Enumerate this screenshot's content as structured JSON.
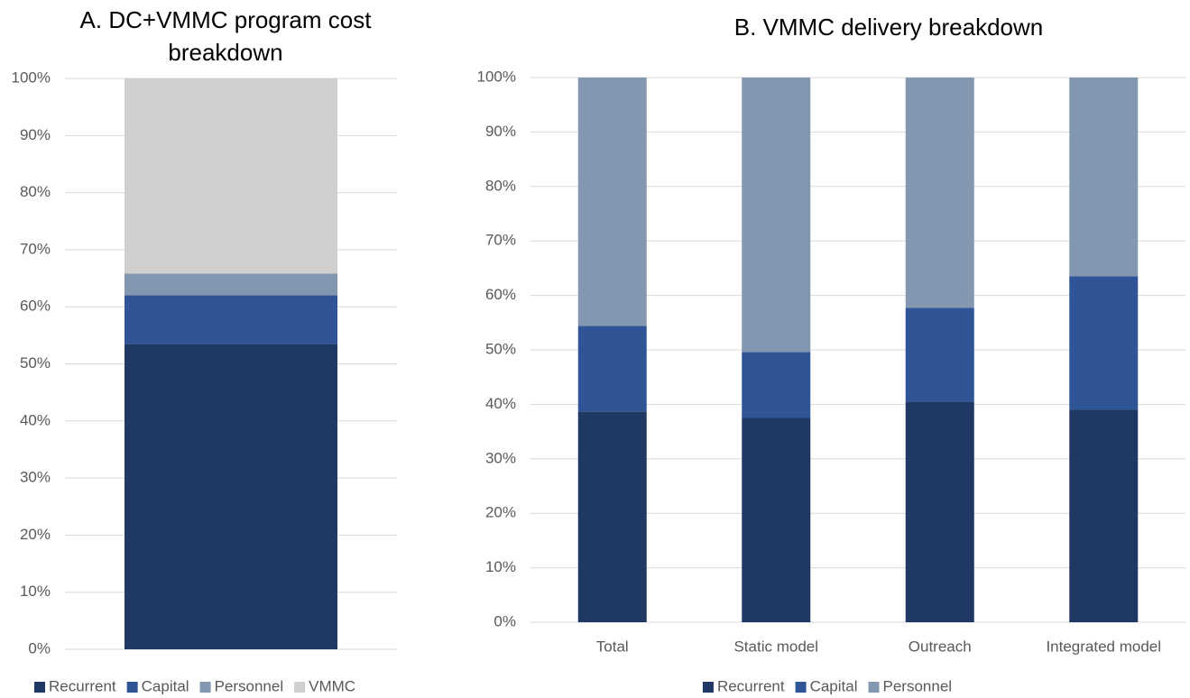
{
  "chart_data": [
    {
      "type": "bar",
      "stacked": true,
      "title": "A. DC+VMMC program cost breakdown",
      "categories": [
        null
      ],
      "series": [
        {
          "name": "Recurrent",
          "color": "#203864",
          "values": [
            53.5
          ]
        },
        {
          "name": "Capital",
          "color": "#2f5597",
          "values": [
            8.5
          ]
        },
        {
          "name": "Personnel",
          "color": "#8497b0",
          "values": [
            3.8
          ]
        },
        {
          "name": "VMMC",
          "color": "#d0cece",
          "values": [
            34.2
          ]
        }
      ],
      "ylim": [
        0,
        100
      ],
      "yticks": [
        {
          "value": 0,
          "label": "0%"
        },
        {
          "value": 10,
          "label": "10%"
        },
        {
          "value": 20,
          "label": "20%"
        },
        {
          "value": 30,
          "label": "30%"
        },
        {
          "value": 40,
          "label": "40%"
        },
        {
          "value": 50,
          "label": "50%"
        },
        {
          "value": 60,
          "label": "60%"
        },
        {
          "value": 70,
          "label": "70%"
        },
        {
          "value": 80,
          "label": "80%"
        },
        {
          "value": 90,
          "label": "90%"
        },
        {
          "value": 100,
          "label": "100%"
        }
      ],
      "grid": true,
      "legend": "bottom"
    },
    {
      "type": "bar",
      "stacked": true,
      "title": "B. VMMC delivery breakdown",
      "categories": [
        "Total",
        "Static model",
        "Outreach",
        "Integrated model"
      ],
      "series": [
        {
          "name": "Recurrent",
          "color": "#203864",
          "values": [
            38.7,
            37.5,
            40.5,
            39.0
          ]
        },
        {
          "name": "Capital",
          "color": "#2f5597",
          "values": [
            15.7,
            12.1,
            17.2,
            24.5
          ]
        },
        {
          "name": "Personnel",
          "color": "#8497b0",
          "values": [
            45.6,
            50.4,
            42.3,
            36.5
          ]
        }
      ],
      "ylim": [
        0,
        100
      ],
      "yticks": [
        {
          "value": 0,
          "label": "0%"
        },
        {
          "value": 10,
          "label": "10%"
        },
        {
          "value": 20,
          "label": "20%"
        },
        {
          "value": 30,
          "label": "30%"
        },
        {
          "value": 40,
          "label": "40%"
        },
        {
          "value": 50,
          "label": "50%"
        },
        {
          "value": 60,
          "label": "60%"
        },
        {
          "value": 70,
          "label": "70%"
        },
        {
          "value": 80,
          "label": "80%"
        },
        {
          "value": 90,
          "label": "90%"
        },
        {
          "value": 100,
          "label": "100%"
        }
      ],
      "grid": true,
      "legend": "bottom"
    }
  ]
}
